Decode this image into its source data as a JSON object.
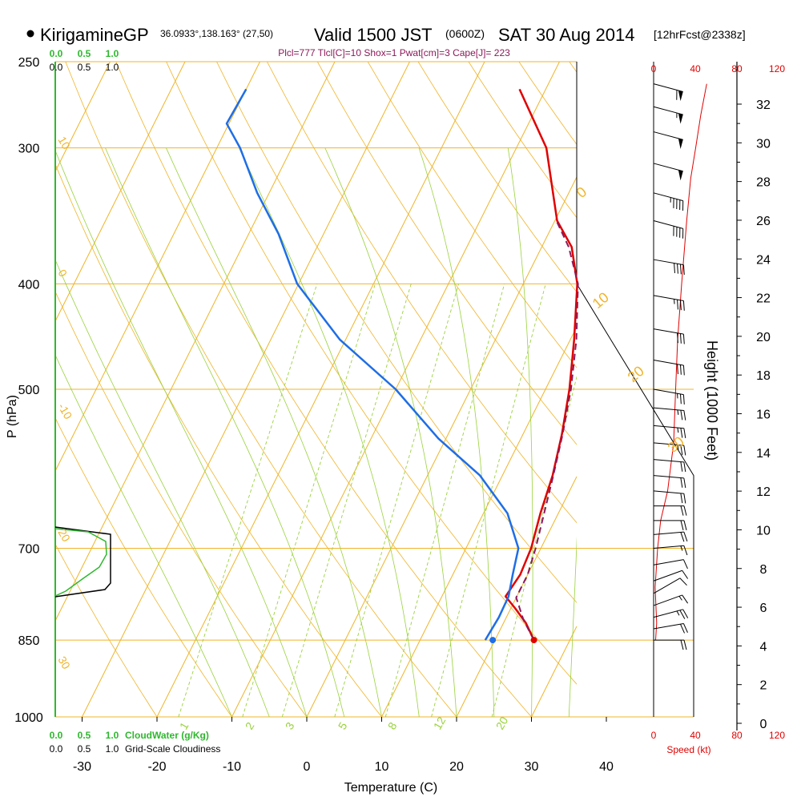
{
  "chart_data": {
    "type": "line",
    "title": {
      "station": "KirigamineGP",
      "coords": "36.0933°,138.163° (27,50)",
      "valid": "Valid 1500 JST",
      "utc": "(0600Z)",
      "date": "SAT 30 Aug 2014",
      "forecast": "[12hrFcst@2338z]"
    },
    "subtitle": "Plcl=777 Tlcl[C]=10 Shox=1 Pwat[cm]=3 Cape[J]= 223",
    "xlabel": "Temperature (C)",
    "ylabel": "P (hPa)",
    "height_label": "Height (1000 Feet)",
    "speed_label": "Speed (kt)",
    "xlim": [
      -35,
      45
    ],
    "ylim_hpa": [
      1000,
      250
    ],
    "x_ticks": [
      "-30",
      "-20",
      "-10",
      "0",
      "10",
      "20",
      "30",
      "40"
    ],
    "p_ticks": [
      "250",
      "300",
      "400",
      "500",
      "700",
      "850",
      "1000"
    ],
    "height_ticks": [
      "0",
      "2",
      "4",
      "6",
      "8",
      "10",
      "12",
      "14",
      "16",
      "18",
      "20",
      "22",
      "24",
      "26",
      "28",
      "30",
      "32"
    ],
    "speed_ticks": [
      "0",
      "40",
      "80",
      "120"
    ],
    "cloud_ticks": [
      "0.0",
      "0.5",
      "1.0"
    ],
    "cloudwater_label": "CloudWater (g/Kg)",
    "cloudiness_label": "Grid-Scale Cloudiness",
    "dry_adiabat_labels": [
      "10",
      "0",
      "-10",
      "20",
      "30"
    ],
    "mixing_ratio_labels": [
      "1",
      "2",
      "3",
      "5",
      "8",
      "12",
      "20"
    ],
    "isotherm_labels": [
      "0",
      "10",
      "20",
      "30"
    ],
    "colors": {
      "temperature": "#e00000",
      "dewpoint": "#1e6ee6",
      "parcel": "#8b1a5a",
      "isobar_isotherm": "#f0b428",
      "mixing_ratio": "#9ad23c",
      "cloud": "#2eb82e",
      "speed": "#e00000"
    },
    "series": [
      {
        "name": "Temperature",
        "points": [
          [
            25.2,
            850
          ],
          [
            23.0,
            820
          ],
          [
            20.6,
            795
          ],
          [
            18.5,
            775
          ],
          [
            19.0,
            740
          ],
          [
            18.7,
            700
          ],
          [
            17.6,
            650
          ],
          [
            16.7,
            600
          ],
          [
            15.2,
            550
          ],
          [
            13.2,
            500
          ],
          [
            10.5,
            450
          ],
          [
            7.2,
            400
          ],
          [
            4.0,
            370
          ],
          [
            0.3,
            350
          ],
          [
            -6.0,
            300
          ],
          [
            -13.5,
            265
          ]
        ]
      },
      {
        "name": "Dewpoint",
        "points": [
          [
            18.7,
            850
          ],
          [
            19.0,
            810
          ],
          [
            18.9,
            775
          ],
          [
            18.0,
            740
          ],
          [
            17.0,
            700
          ],
          [
            13.2,
            650
          ],
          [
            7.0,
            600
          ],
          [
            -1.0,
            555
          ],
          [
            -10.0,
            500
          ],
          [
            -20.8,
            450
          ],
          [
            -30.2,
            400
          ],
          [
            -36.0,
            360
          ],
          [
            -41.6,
            330
          ],
          [
            -46.9,
            300
          ],
          [
            -50.3,
            285
          ],
          [
            -50.0,
            265
          ]
        ]
      },
      {
        "name": "Parcel",
        "points": [
          [
            25.2,
            850
          ],
          [
            22.5,
            815
          ],
          [
            20.0,
            777
          ],
          [
            20.0,
            740
          ],
          [
            19.3,
            700
          ],
          [
            18.1,
            650
          ],
          [
            16.8,
            600
          ],
          [
            15.3,
            550
          ],
          [
            13.4,
            500
          ],
          [
            10.8,
            450
          ],
          [
            7.3,
            400
          ],
          [
            3.6,
            370
          ],
          [
            0.2,
            350
          ]
        ]
      }
    ],
    "speed_profile": [
      [
        2,
        850
      ],
      [
        3,
        820
      ],
      [
        1.5,
        760
      ],
      [
        4,
        700
      ],
      [
        7,
        660
      ],
      [
        14,
        620
      ],
      [
        20,
        560
      ],
      [
        22,
        500
      ],
      [
        24,
        450
      ],
      [
        28,
        400
      ],
      [
        33,
        350
      ],
      [
        37,
        320
      ],
      [
        42,
        300
      ],
      [
        47,
        280
      ],
      [
        53,
        262
      ]
    ],
    "winds": [
      {
        "p": 850,
        "speed": 20,
        "dir": 270
      },
      {
        "p": 830,
        "speed": 20,
        "dir": 260
      },
      {
        "p": 810,
        "speed": 25,
        "dir": 255
      },
      {
        "p": 790,
        "speed": 15,
        "dir": 250
      },
      {
        "p": 770,
        "speed": 10,
        "dir": 240
      },
      {
        "p": 750,
        "speed": 10,
        "dir": 250
      },
      {
        "p": 725,
        "speed": 10,
        "dir": 260
      },
      {
        "p": 700,
        "speed": 15,
        "dir": 265
      },
      {
        "p": 680,
        "speed": 20,
        "dir": 265
      },
      {
        "p": 660,
        "speed": 20,
        "dir": 270
      },
      {
        "p": 640,
        "speed": 20,
        "dir": 270
      },
      {
        "p": 620,
        "speed": 20,
        "dir": 275
      },
      {
        "p": 600,
        "speed": 20,
        "dir": 275
      },
      {
        "p": 580,
        "speed": 20,
        "dir": 275
      },
      {
        "p": 560,
        "speed": 25,
        "dir": 275
      },
      {
        "p": 540,
        "speed": 25,
        "dir": 275
      },
      {
        "p": 520,
        "speed": 25,
        "dir": 275
      },
      {
        "p": 500,
        "speed": 25,
        "dir": 280
      },
      {
        "p": 470,
        "speed": 30,
        "dir": 280
      },
      {
        "p": 440,
        "speed": 30,
        "dir": 280
      },
      {
        "p": 410,
        "speed": 35,
        "dir": 280
      },
      {
        "p": 380,
        "speed": 40,
        "dir": 280
      },
      {
        "p": 350,
        "speed": 40,
        "dir": 285
      },
      {
        "p": 330,
        "speed": 45,
        "dir": 285
      },
      {
        "p": 310,
        "speed": 50,
        "dir": 285
      },
      {
        "p": 290,
        "speed": 50,
        "dir": 285
      },
      {
        "p": 275,
        "speed": 55,
        "dir": 285
      },
      {
        "p": 262,
        "speed": 60,
        "dir": 285
      }
    ]
  }
}
